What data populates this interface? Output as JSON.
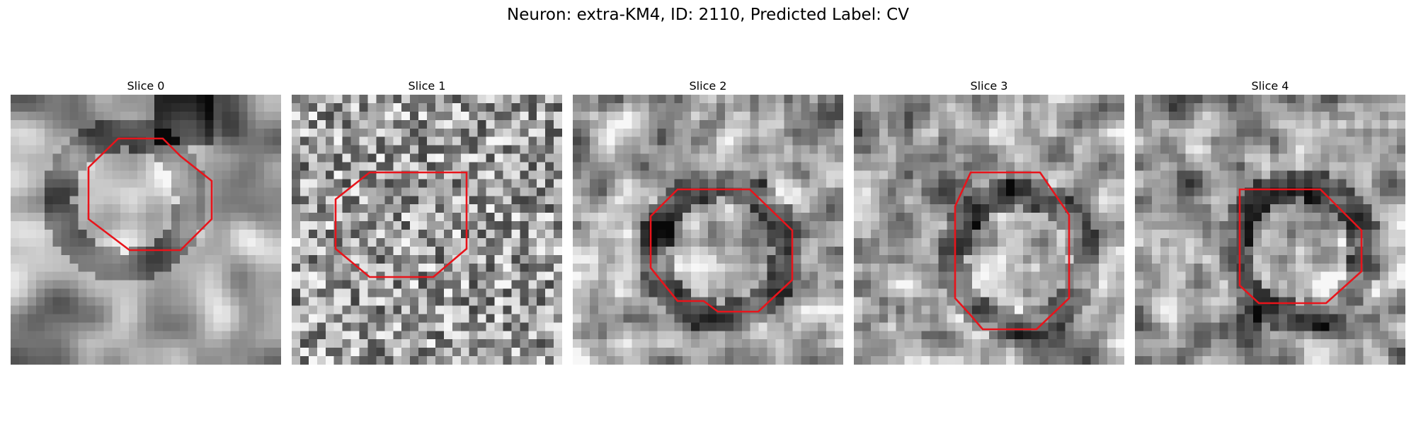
{
  "figure": {
    "title": "Neuron: extra-KM4, ID: 2110, Predicted Label: CV"
  },
  "panels": [
    {
      "title": "Slice 0",
      "seed": 11,
      "style": "smooth"
    },
    {
      "title": "Slice 1",
      "seed": 23,
      "style": "noisy"
    },
    {
      "title": "Slice 2",
      "seed": 37,
      "style": "ring"
    },
    {
      "title": "Slice 3",
      "seed": 51,
      "style": "ring"
    },
    {
      "title": "Slice 4",
      "seed": 67,
      "style": "ring"
    }
  ],
  "overlay": {
    "stroke_color": "#e8141b"
  }
}
